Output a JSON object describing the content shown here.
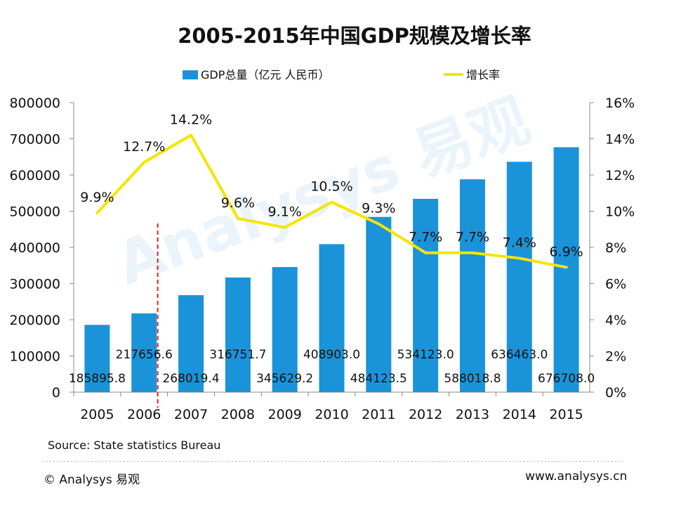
{
  "chart_data": {
    "type": "bar",
    "title": "2005-2015年中国GDP规模及增长率",
    "categories": [
      "2005",
      "2006",
      "2007",
      "2008",
      "2009",
      "2010",
      "2011",
      "2012",
      "2013",
      "2014",
      "2015"
    ],
    "series": [
      {
        "name": "GDP总量（亿元 人民币）",
        "type": "bar",
        "axis": "left",
        "color": "#1a93d9",
        "values": [
          185895.8,
          217656.6,
          268019.4,
          316751.7,
          345629.2,
          408903.0,
          484123.5,
          534123.0,
          588018.8,
          636463.0,
          676708.0
        ],
        "labels": [
          "185895.8",
          "217656.6",
          "268019.4",
          "316751.7",
          "345629.2",
          "408903.0",
          "484123.5",
          "534123.0",
          "588018.8",
          "636463.0",
          "676708.0"
        ]
      },
      {
        "name": "增长率",
        "type": "line",
        "axis": "right",
        "color": "#f5e400",
        "values": [
          9.9,
          12.7,
          14.2,
          9.6,
          9.1,
          10.5,
          9.3,
          7.7,
          7.7,
          7.4,
          6.9
        ],
        "labels": [
          "9.9%",
          "12.7%",
          "14.2%",
          "9.6%",
          "9.1%",
          "10.5%",
          "9.3%",
          "7.7%",
          "7.7%",
          "7.4%",
          "6.9%"
        ]
      }
    ],
    "y_left": {
      "range": [
        0,
        800000
      ],
      "ticks": [
        0,
        100000,
        200000,
        300000,
        400000,
        500000,
        600000,
        700000,
        800000
      ],
      "tick_labels": [
        "0",
        "100000",
        "200000",
        "300000",
        "400000",
        "500000",
        "600000",
        "700000",
        "800000"
      ]
    },
    "y_right": {
      "range": [
        0,
        16
      ],
      "ticks": [
        0,
        2,
        4,
        6,
        8,
        10,
        12,
        14,
        16
      ],
      "tick_labels": [
        "0%",
        "2%",
        "4%",
        "6%",
        "8%",
        "10%",
        "12%",
        "14%",
        "16%"
      ]
    },
    "legend": {
      "placement": "top",
      "entries": [
        "GDP总量（亿元 人民币）",
        "增长率"
      ]
    },
    "annotations": [
      {
        "type": "vertical-dashed-line",
        "color": "#e02020",
        "between": [
          "2006",
          "2007"
        ]
      }
    ],
    "grid": false
  },
  "source_note": "Source: State statistics Bureau",
  "footer": {
    "brand_left": "© Analysys 易观",
    "brand_right": "www.analysys.cn"
  },
  "watermark": {
    "text": "Analysys 易观"
  }
}
